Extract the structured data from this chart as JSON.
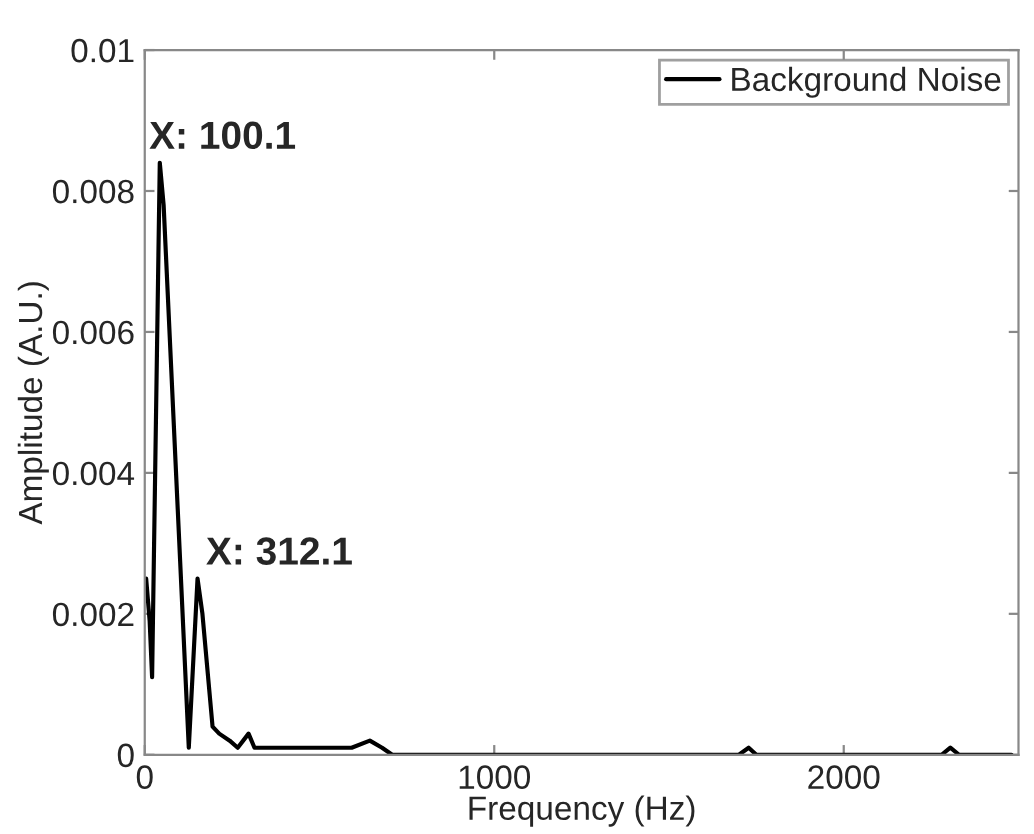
{
  "chart_data": {
    "type": "line",
    "xlabel": "Frequency (Hz)",
    "ylabel": "Amplitude (A.U.)",
    "annotations": [
      "X: 100.1",
      "X: 312.1"
    ],
    "series": [
      {
        "name": "Background Noise",
        "color": "#000000",
        "x": [
          4,
          14,
          21,
          43,
          54,
          126,
          151,
          165,
          194,
          213,
          243,
          266,
          297,
          314,
          340,
          369,
          398,
          427,
          450,
          475,
          504,
          534,
          563,
          592,
          644,
          679,
          708,
          747,
          900,
          1100,
          1300,
          1500,
          1700,
          1728,
          1750,
          1900,
          2100,
          2280,
          2305,
          2330,
          2480
        ],
        "values": [
          0.0025,
          0.0019,
          0.0011,
          0.0084,
          0.0078,
          0.0001,
          0.0025,
          0.002,
          0.0004,
          0.0003,
          0.0002,
          0.0001,
          0.0003,
          0.0001,
          0.0001,
          0.0001,
          0.0001,
          0.0001,
          0.0001,
          0.0001,
          0.0001,
          0.0001,
          0.0001,
          0.0001,
          0.0002,
          0.0001,
          0,
          0,
          0,
          0,
          0,
          0,
          0,
          0.0001,
          0,
          0,
          0,
          0,
          0.0001,
          0,
          0
        ]
      }
    ],
    "xlim": [
      0,
      2500
    ],
    "xticks": [
      0,
      1000,
      2000
    ],
    "ylim": [
      0,
      0.01
    ],
    "yticks": [
      0,
      0.002,
      0.004,
      0.006,
      0.008,
      0.01
    ],
    "legend": "top right",
    "grid": false
  }
}
